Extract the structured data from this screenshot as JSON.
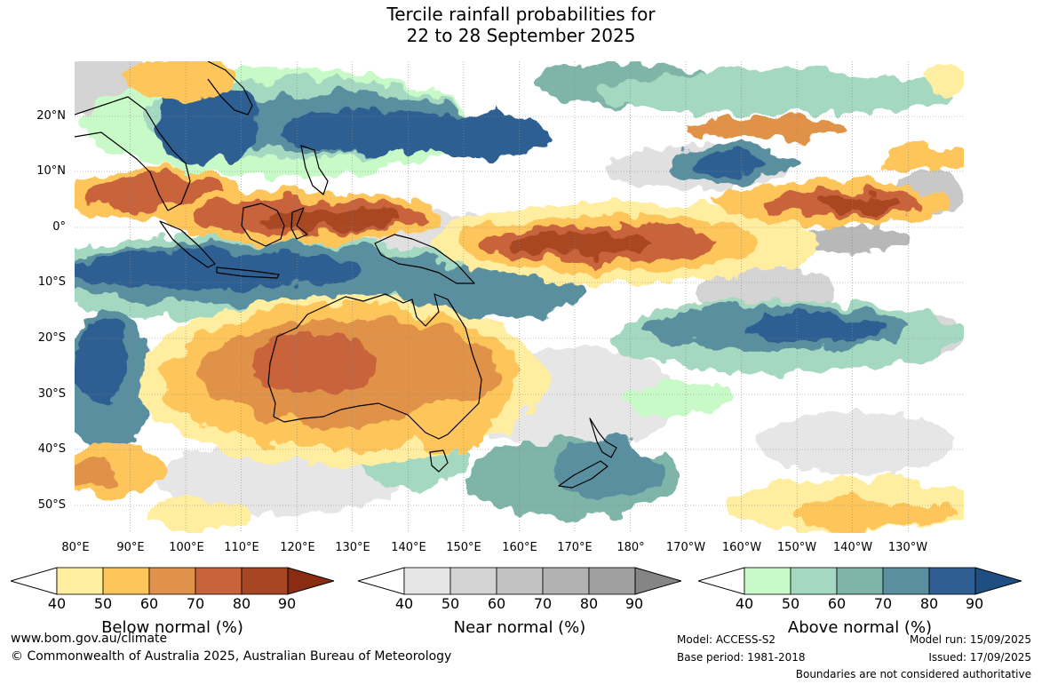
{
  "title": {
    "line1": "Tercile rainfall probabilities for",
    "line2": "22 to 28 September 2025"
  },
  "map": {
    "latitude_labels": [
      "20°N",
      "10°N",
      "0°",
      "10°S",
      "20°S",
      "30°S",
      "40°S",
      "50°S"
    ],
    "longitude_labels": [
      "80°E",
      "90°E",
      "100°E",
      "110°E",
      "120°E",
      "130°E",
      "140°E",
      "150°E",
      "160°E",
      "170°E",
      "180°",
      "170°W",
      "160°W",
      "150°W",
      "140°W",
      "130°W"
    ]
  },
  "legends": [
    {
      "title": "Below normal (%)",
      "ticks": [
        "40",
        "50",
        "60",
        "70",
        "80",
        "90"
      ],
      "colors": [
        "#ffeda0",
        "#fec65a",
        "#e0924a",
        "#c8643a",
        "#a84624",
        "#8a2c12"
      ]
    },
    {
      "title": "Near normal (%)",
      "ticks": [
        "40",
        "50",
        "60",
        "70",
        "80",
        "90"
      ],
      "colors": [
        "#e6e6e6",
        "#d4d4d4",
        "#c2c2c2",
        "#b2b2b2",
        "#a0a0a0",
        "#858585"
      ]
    },
    {
      "title": "Above normal (%)",
      "ticks": [
        "40",
        "50",
        "60",
        "70",
        "80",
        "90"
      ],
      "colors": [
        "#c8fac8",
        "#a4d8c0",
        "#7fb4a8",
        "#5a8fa0",
        "#2f5e92",
        "#1f4f82"
      ]
    }
  ],
  "footer": {
    "url": "www.bom.gov.au/climate",
    "copyright": "© Commonwealth of Australia 2025, Australian Bureau of Meteorology",
    "model": "Model: ACCESS-S2",
    "base_period": "Base period: 1981-2018",
    "model_run": "Model run: 15/09/2025",
    "issued": "Issued: 17/09/2025",
    "boundaries": "Boundaries are not considered authoritative"
  }
}
